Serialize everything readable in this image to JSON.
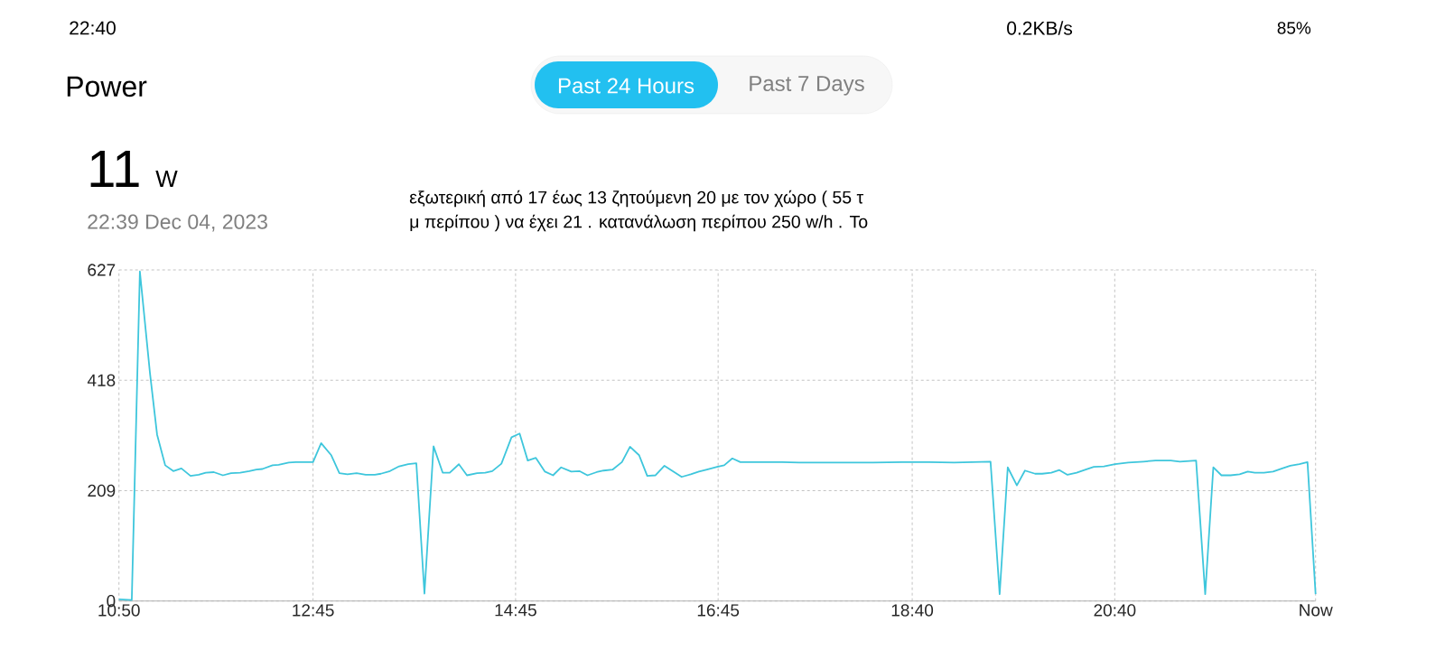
{
  "chart_data": {
    "type": "line",
    "title": "Power",
    "annotations": [
      "Past 24 Hours",
      "Past 7 Days",
      "11",
      "W",
      "22:39  Dec 04, 2023",
      "εξωτερική από 17 έως 13 ζητούμενη 20 με τον χώρο ( 55 τ",
      "μ  περίπου ) να έχει 21 . κατανάλωση περίπου 250 w/h . Το",
      "22:40",
      "0.2KB/s",
      "85%"
    ],
    "x": [
      10.8333,
      10.96,
      11.04,
      11.14,
      11.21,
      11.29,
      11.37,
      11.45,
      11.54,
      11.62,
      11.69,
      11.77,
      11.86,
      11.94,
      12.03,
      12.12,
      12.19,
      12.25,
      12.35,
      12.41,
      12.51,
      12.58,
      12.75,
      12.83,
      12.93,
      13.01,
      13.09,
      13.18,
      13.27,
      13.36,
      13.42,
      13.51,
      13.6,
      13.69,
      13.77,
      13.85,
      13.94,
      14.03,
      14.1,
      14.19,
      14.27,
      14.37,
      14.45,
      14.52,
      14.61,
      14.71,
      14.79,
      14.87,
      14.95,
      15.04,
      15.12,
      15.2,
      15.3,
      15.38,
      15.46,
      15.55,
      15.62,
      15.71,
      15.8,
      15.88,
      15.97,
      16.05,
      16.13,
      16.22,
      16.3,
      16.39,
      16.48,
      16.56,
      16.64,
      16.74,
      16.81,
      16.89,
      16.97,
      17.18,
      17.38,
      17.55,
      17.9,
      18.28,
      18.57,
      18.83,
      19.08,
      19.44,
      19.53,
      19.61,
      19.7,
      19.78,
      19.88,
      19.95,
      20.04,
      20.12,
      20.2,
      20.29,
      20.38,
      20.46,
      20.56,
      20.67,
      20.8,
      20.95,
      21.07,
      21.22,
      21.31,
      21.47,
      21.56,
      21.64,
      21.72,
      21.81,
      21.9,
      21.98,
      22.05,
      22.14,
      22.23,
      22.32,
      22.4,
      22.49,
      22.57,
      22.65
    ],
    "values": [
      3,
      2,
      624,
      431,
      315,
      257,
      246,
      251,
      237,
      239,
      243,
      244,
      238,
      242,
      243,
      246,
      249,
      250,
      257,
      258,
      262,
      263,
      263,
      299,
      276,
      242,
      240,
      242,
      239,
      239,
      241,
      246,
      255,
      259,
      261,
      14,
      293,
      243,
      243,
      259,
      238,
      242,
      243,
      246,
      260,
      310,
      317,
      266,
      271,
      245,
      238,
      253,
      245,
      246,
      238,
      244,
      247,
      249,
      263,
      292,
      276,
      237,
      238,
      256,
      246,
      235,
      240,
      245,
      249,
      254,
      257,
      270,
      263,
      263,
      263,
      262,
      262,
      262,
      263,
      263,
      262,
      264,
      13,
      253,
      219,
      247,
      241,
      241,
      243,
      248,
      239,
      243,
      249,
      254,
      255,
      259,
      262,
      264,
      266,
      266,
      264,
      266,
      13,
      253,
      238,
      238,
      240,
      245,
      243,
      243,
      245,
      251,
      256,
      259,
      263,
      13
    ],
    "color": "#3ec6dc",
    "xlim": [
      10.8333,
      22.65
    ],
    "xticks": [
      {
        "value": 10.8333,
        "label": "10:50"
      },
      {
        "value": 12.75,
        "label": "12:45"
      },
      {
        "value": 14.75,
        "label": "14:45"
      },
      {
        "value": 16.75,
        "label": "16:45"
      },
      {
        "value": 18.6667,
        "label": "18:40"
      },
      {
        "value": 20.6667,
        "label": "20:40"
      },
      {
        "value": 22.65,
        "label": "Now"
      }
    ],
    "ylim": [
      0,
      627
    ],
    "yticks": [
      0,
      209,
      418,
      627
    ],
    "grid": true
  }
}
